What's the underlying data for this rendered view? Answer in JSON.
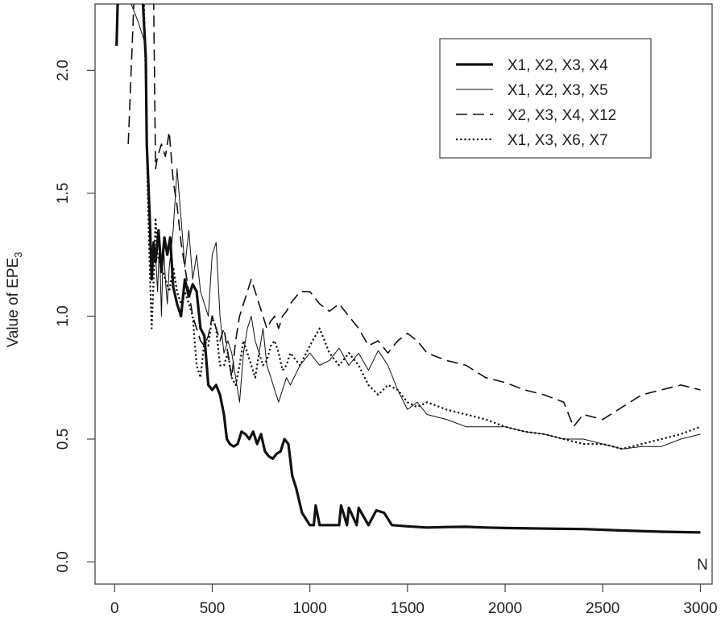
{
  "chart_data": {
    "type": "line",
    "title": "",
    "xlabel": "",
    "ylabel": "Value of EPE",
    "ylabel_subscript": "3",
    "corner_label": "N",
    "xlim": [
      -100,
      3060
    ],
    "ylim": [
      -0.09,
      2.27
    ],
    "x_ticks": [
      0,
      500,
      1000,
      1500,
      2000,
      2500,
      3000
    ],
    "x_tick_labels": [
      "0",
      "500",
      "1000",
      "1500",
      "2000",
      "2500",
      "3000"
    ],
    "y_ticks": [
      0.0,
      0.5,
      1.0,
      1.5,
      2.0
    ],
    "y_tick_labels": [
      "0.0",
      "0.5",
      "1.0",
      "1.5",
      "2.0"
    ],
    "grid": false,
    "legend_position": "top-right",
    "series": [
      {
        "name": "X1, X2, X3, X4",
        "style": "thick",
        "x": [
          10,
          20,
          25,
          40,
          80,
          100,
          120,
          140,
          160,
          165,
          180,
          190,
          200,
          210,
          225,
          240,
          255,
          270,
          285,
          300,
          320,
          340,
          360,
          380,
          400,
          420,
          440,
          460,
          480,
          500,
          520,
          540,
          560,
          575,
          590,
          610,
          630,
          650,
          670,
          690,
          710,
          730,
          750,
          770,
          790,
          810,
          830,
          850,
          870,
          890,
          910,
          930,
          960,
          1000,
          1020,
          1030,
          1050,
          1100,
          1150,
          1160,
          1190,
          1200,
          1240,
          1250,
          1300,
          1340,
          1380,
          1420,
          1500,
          1600,
          1700,
          1800,
          1900,
          2000,
          2200,
          2400,
          2600,
          2800,
          3000
        ],
        "y": [
          2.1,
          2.4,
          2.3,
          2.35,
          2.4,
          2.3,
          2.4,
          2.35,
          2.05,
          1.7,
          1.4,
          1.15,
          1.3,
          1.22,
          1.35,
          1.18,
          1.32,
          1.25,
          1.32,
          1.12,
          1.05,
          1.0,
          1.15,
          1.08,
          1.13,
          1.1,
          0.95,
          0.92,
          0.72,
          0.7,
          0.72,
          0.68,
          0.6,
          0.5,
          0.48,
          0.47,
          0.48,
          0.53,
          0.52,
          0.5,
          0.53,
          0.48,
          0.52,
          0.45,
          0.43,
          0.42,
          0.44,
          0.45,
          0.5,
          0.48,
          0.35,
          0.3,
          0.2,
          0.15,
          0.15,
          0.23,
          0.15,
          0.15,
          0.15,
          0.23,
          0.15,
          0.22,
          0.15,
          0.22,
          0.15,
          0.21,
          0.2,
          0.15,
          0.145,
          0.14,
          0.142,
          0.143,
          0.14,
          0.138,
          0.136,
          0.134,
          0.128,
          0.123,
          0.12
        ]
      },
      {
        "name": "X1, X2, X3, X5",
        "style": "thin",
        "x": [
          60,
          70,
          120,
          160,
          170,
          180,
          190,
          200,
          210,
          220,
          230,
          240,
          250,
          260,
          270,
          280,
          300,
          320,
          340,
          360,
          380,
          400,
          420,
          440,
          460,
          480,
          500,
          520,
          540,
          560,
          580,
          600,
          620,
          640,
          660,
          680,
          700,
          720,
          740,
          760,
          780,
          800,
          820,
          840,
          860,
          880,
          900,
          950,
          1000,
          1050,
          1100,
          1150,
          1200,
          1250,
          1300,
          1350,
          1400,
          1450,
          1500,
          1550,
          1600,
          1700,
          1800,
          1900,
          2000,
          2100,
          2200,
          2300,
          2400,
          2500,
          2600,
          2700,
          2800,
          2900,
          3000
        ],
        "y": [
          2.4,
          2.3,
          2.2,
          2.1,
          1.6,
          1.4,
          1.2,
          1.3,
          1.25,
          1.1,
          1.3,
          1.0,
          1.3,
          1.15,
          1.05,
          1.2,
          1.35,
          1.6,
          1.4,
          1.2,
          1.35,
          1.15,
          1.25,
          1.1,
          1.05,
          1.0,
          1.25,
          1.3,
          1.0,
          0.85,
          0.9,
          0.85,
          0.75,
          0.65,
          0.85,
          0.95,
          1.0,
          0.9,
          0.85,
          0.95,
          0.8,
          0.75,
          0.7,
          0.65,
          0.7,
          0.75,
          0.72,
          0.8,
          0.85,
          0.8,
          0.82,
          0.87,
          0.8,
          0.85,
          0.78,
          0.86,
          0.8,
          0.7,
          0.62,
          0.65,
          0.6,
          0.58,
          0.55,
          0.55,
          0.55,
          0.53,
          0.52,
          0.5,
          0.5,
          0.48,
          0.46,
          0.47,
          0.47,
          0.5,
          0.52
        ]
      },
      {
        "name": "X2, X3, X4, X12",
        "style": "dashed",
        "x": [
          70,
          100,
          200,
          210,
          220,
          240,
          260,
          280,
          300,
          320,
          340,
          360,
          380,
          400,
          420,
          440,
          460,
          480,
          500,
          520,
          540,
          560,
          580,
          600,
          620,
          640,
          660,
          680,
          700,
          720,
          740,
          760,
          780,
          800,
          820,
          840,
          860,
          880,
          900,
          950,
          1000,
          1050,
          1100,
          1150,
          1200,
          1250,
          1300,
          1350,
          1400,
          1450,
          1500,
          1550,
          1600,
          1700,
          1800,
          1900,
          2000,
          2100,
          2200,
          2300,
          2350,
          2400,
          2500,
          2600,
          2700,
          2800,
          2900,
          3000
        ],
        "y": [
          1.7,
          2.3,
          2.3,
          1.6,
          1.65,
          1.7,
          1.65,
          1.75,
          1.55,
          1.45,
          1.3,
          1.2,
          1.1,
          1.0,
          0.95,
          0.9,
          0.88,
          0.92,
          1.0,
          0.95,
          0.9,
          0.95,
          0.85,
          0.75,
          0.9,
          1.0,
          1.05,
          1.1,
          1.15,
          1.1,
          1.05,
          1.0,
          0.95,
          0.98,
          1.0,
          0.95,
          1.0,
          1.02,
          1.05,
          1.1,
          1.1,
          1.05,
          1.02,
          1.05,
          1.0,
          0.95,
          0.88,
          0.9,
          0.85,
          0.9,
          0.93,
          0.9,
          0.85,
          0.82,
          0.8,
          0.75,
          0.73,
          0.7,
          0.68,
          0.65,
          0.55,
          0.6,
          0.58,
          0.63,
          0.68,
          0.7,
          0.72,
          0.7
        ]
      },
      {
        "name": "X1, X3, X6, X7",
        "style": "dotted",
        "x": [
          150,
          160,
          170,
          180,
          190,
          200,
          210,
          220,
          240,
          260,
          280,
          300,
          320,
          340,
          360,
          380,
          400,
          420,
          440,
          460,
          480,
          500,
          520,
          540,
          560,
          580,
          600,
          620,
          640,
          660,
          680,
          700,
          720,
          740,
          760,
          780,
          800,
          820,
          840,
          860,
          880,
          900,
          950,
          1000,
          1050,
          1100,
          1150,
          1200,
          1250,
          1300,
          1350,
          1400,
          1450,
          1500,
          1550,
          1600,
          1700,
          1800,
          1900,
          2000,
          2100,
          2200,
          2300,
          2400,
          2500,
          2600,
          2700,
          2800,
          2900,
          3000
        ],
        "y": [
          2.3,
          1.95,
          1.5,
          1.2,
          0.95,
          1.15,
          1.4,
          1.25,
          1.2,
          1.15,
          1.1,
          1.2,
          1.1,
          1.05,
          1.1,
          1.05,
          1.0,
          0.8,
          0.75,
          0.9,
          0.88,
          1.0,
          0.95,
          0.8,
          0.8,
          0.85,
          0.75,
          0.72,
          0.8,
          0.9,
          0.85,
          0.8,
          0.75,
          0.85,
          0.8,
          0.82,
          0.88,
          0.9,
          0.85,
          0.78,
          0.8,
          0.85,
          0.8,
          0.88,
          0.95,
          0.85,
          0.8,
          0.85,
          0.8,
          0.72,
          0.68,
          0.72,
          0.7,
          0.65,
          0.63,
          0.65,
          0.62,
          0.6,
          0.58,
          0.55,
          0.53,
          0.52,
          0.5,
          0.48,
          0.48,
          0.46,
          0.48,
          0.5,
          0.52,
          0.55
        ]
      }
    ]
  }
}
